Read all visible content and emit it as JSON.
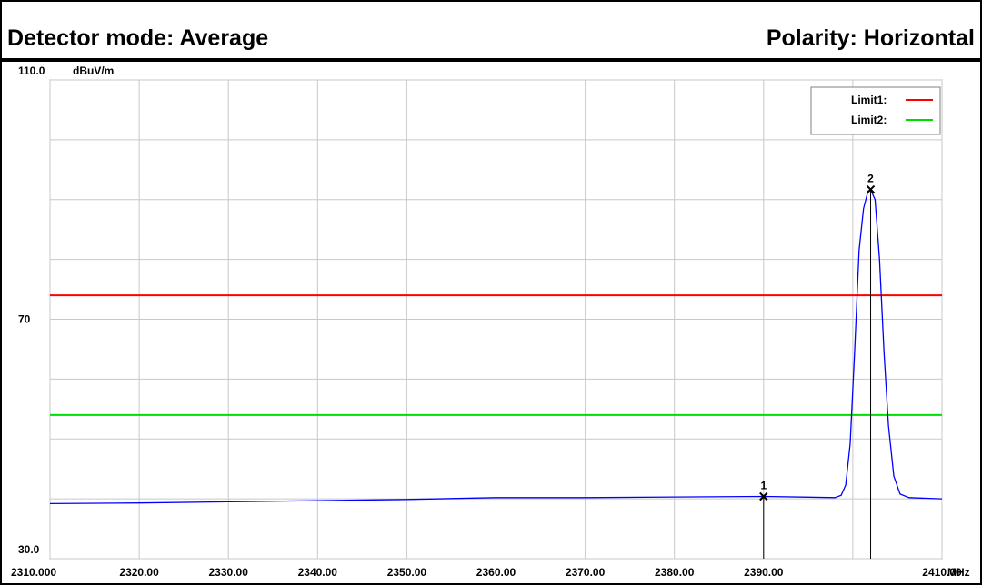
{
  "chart_data": {
    "type": "line",
    "header_left": "Detector mode: Average",
    "header_right": "Polarity: Horizontal",
    "y_unit": "dBuV/m",
    "x_unit": "MHz",
    "xlim": [
      2310,
      2410
    ],
    "ylim": [
      30,
      110
    ],
    "xticks": [
      {
        "value": 2310,
        "label": "2310.000"
      },
      {
        "value": 2320,
        "label": "2320.00"
      },
      {
        "value": 2330,
        "label": "2330.00"
      },
      {
        "value": 2340,
        "label": "2340.00"
      },
      {
        "value": 2350,
        "label": "2350.00"
      },
      {
        "value": 2360,
        "label": "2360.00"
      },
      {
        "value": 2370,
        "label": "2370.00"
      },
      {
        "value": 2380,
        "label": "2380.00"
      },
      {
        "value": 2390,
        "label": "2390.00"
      },
      {
        "value": 2400,
        "label": null
      },
      {
        "value": 2410,
        "label": "2410.00"
      }
    ],
    "yticks": [
      {
        "value": 30,
        "label": "30.0"
      },
      {
        "value": 40,
        "label": null
      },
      {
        "value": 50,
        "label": null
      },
      {
        "value": 60,
        "label": null
      },
      70,
      {
        "value": 80,
        "label": null
      },
      {
        "value": 90,
        "label": null
      },
      {
        "value": 100,
        "label": null
      },
      {
        "value": 110,
        "label": "110.0"
      }
    ],
    "grid": true,
    "series": [
      {
        "color": "#0000ff",
        "x": [
          2310,
          2320,
          2330,
          2340,
          2350,
          2360,
          2370,
          2380,
          2390,
          2398,
          2398.7,
          2399.2,
          2399.7,
          2400.2,
          2400.7,
          2401.2,
          2401.7,
          2402,
          2402.5,
          2403,
          2403.5,
          2404,
          2404.6,
          2405.3,
          2406.3,
          2410
        ],
        "values": [
          39.2,
          39.3,
          39.5,
          39.7,
          39.9,
          40.2,
          40.2,
          40.3,
          40.4,
          40.2,
          40.6,
          42.3,
          49.2,
          64.6,
          81.5,
          88.5,
          91.4,
          91.7,
          90,
          80,
          64.6,
          52.3,
          43.8,
          40.8,
          40.2,
          40
        ]
      }
    ],
    "limits": [
      {
        "name": "Limit1:",
        "color": "#ff0000",
        "value": 74
      },
      {
        "name": "Limit2:",
        "color": "#00dd00",
        "value": 54
      }
    ],
    "markers": [
      {
        "label": "1",
        "x": 2390,
        "value": 40.4
      },
      {
        "label": "2",
        "x": 2402,
        "value": 91.7
      }
    ],
    "legend": "top-right"
  }
}
